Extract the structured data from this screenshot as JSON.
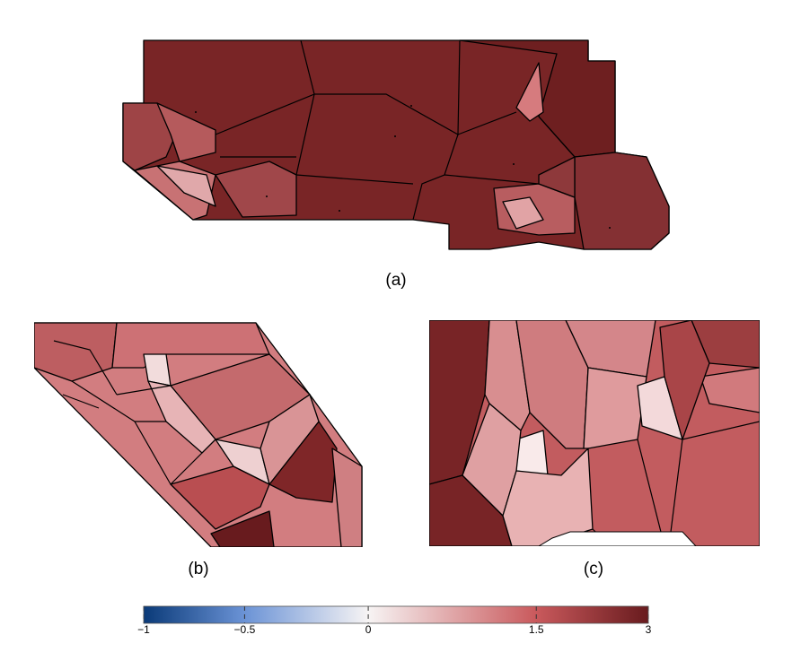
{
  "panels": [
    {
      "label": "(a)"
    },
    {
      "label": "(b)"
    },
    {
      "label": "(c)"
    }
  ],
  "colorbar": {
    "ticks": [
      {
        "value": -1,
        "label": "−1"
      },
      {
        "value": -0.5,
        "label": "−0.5"
      },
      0,
      1.5,
      3
    ],
    "colors": [
      "#0a3a78",
      "#6b93d6",
      "#f7f4f4",
      "#c9595c",
      "#681b1e"
    ]
  }
}
